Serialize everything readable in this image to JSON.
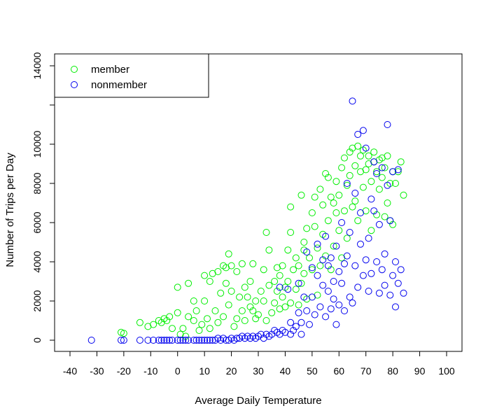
{
  "chart_data": {
    "type": "scatter",
    "title": "",
    "xlabel": "Average Daily Temperature",
    "ylabel": "Number of Trips per Day",
    "xlim": [
      -40,
      100
    ],
    "ylim": [
      0,
      14000
    ],
    "x_ticks": [
      -40,
      -30,
      -20,
      -10,
      0,
      10,
      20,
      30,
      40,
      50,
      60,
      70,
      80,
      90,
      100
    ],
    "y_ticks": [
      0,
      2000,
      4000,
      6000,
      8000,
      10000,
      14000
    ],
    "y_minor_ticks": [
      12000
    ],
    "grid": false,
    "legend_position": "top-left",
    "marker": "open-circle",
    "series": [
      {
        "name": "member",
        "color": "#00ee00",
        "points": [
          [
            -21,
            400
          ],
          [
            -20,
            350
          ],
          [
            -14,
            900
          ],
          [
            -11,
            700
          ],
          [
            -9,
            800
          ],
          [
            -7,
            1000
          ],
          [
            -6,
            900
          ],
          [
            -5,
            1100
          ],
          [
            -4,
            1000
          ],
          [
            -3,
            1200
          ],
          [
            -2,
            600
          ],
          [
            0,
            1400
          ],
          [
            0,
            2700
          ],
          [
            1,
            300
          ],
          [
            2,
            600
          ],
          [
            3,
            200
          ],
          [
            4,
            1200
          ],
          [
            4,
            2900
          ],
          [
            6,
            2000
          ],
          [
            6,
            1000
          ],
          [
            7,
            1500
          ],
          [
            8,
            500
          ],
          [
            9,
            800
          ],
          [
            10,
            3300
          ],
          [
            10,
            2000
          ],
          [
            11,
            1100
          ],
          [
            12,
            3000
          ],
          [
            12,
            600
          ],
          [
            13,
            3400
          ],
          [
            14,
            1500
          ],
          [
            15,
            3500
          ],
          [
            15,
            900
          ],
          [
            16,
            2400
          ],
          [
            17,
            3800
          ],
          [
            17,
            1200
          ],
          [
            18,
            2900
          ],
          [
            18,
            3700
          ],
          [
            19,
            4400
          ],
          [
            19,
            1800
          ],
          [
            20,
            2500
          ],
          [
            20,
            3800
          ],
          [
            21,
            700
          ],
          [
            22,
            1100
          ],
          [
            22,
            3500
          ],
          [
            23,
            2200
          ],
          [
            24,
            3900
          ],
          [
            24,
            1500
          ],
          [
            25,
            2700
          ],
          [
            25,
            1000
          ],
          [
            26,
            2200
          ],
          [
            27,
            3000
          ],
          [
            27,
            1700
          ],
          [
            28,
            1500
          ],
          [
            28,
            3900
          ],
          [
            29,
            1100
          ],
          [
            29,
            2000
          ],
          [
            30,
            1300
          ],
          [
            31,
            2500
          ],
          [
            32,
            3600
          ],
          [
            32,
            2000
          ],
          [
            33,
            5500
          ],
          [
            33,
            1000
          ],
          [
            34,
            4600
          ],
          [
            34,
            2800
          ],
          [
            35,
            1400
          ],
          [
            36,
            3000
          ],
          [
            36,
            1900
          ],
          [
            37,
            3700
          ],
          [
            37,
            2500
          ],
          [
            38,
            1600
          ],
          [
            38,
            3300
          ],
          [
            39,
            3800
          ],
          [
            39,
            2200
          ],
          [
            40,
            2700
          ],
          [
            40,
            1700
          ],
          [
            41,
            3000
          ],
          [
            41,
            4600
          ],
          [
            42,
            6800
          ],
          [
            42,
            1900
          ],
          [
            42,
            5500
          ],
          [
            43,
            3600
          ],
          [
            44,
            2600
          ],
          [
            44,
            4200
          ],
          [
            45,
            1800
          ],
          [
            45,
            3800
          ],
          [
            46,
            2900
          ],
          [
            46,
            7400
          ],
          [
            47,
            5000
          ],
          [
            47,
            4600
          ],
          [
            47,
            3400
          ],
          [
            48,
            5700
          ],
          [
            48,
            2100
          ],
          [
            49,
            4200
          ],
          [
            50,
            3600
          ],
          [
            50,
            6500
          ],
          [
            51,
            7300
          ],
          [
            51,
            5800
          ],
          [
            52,
            2300
          ],
          [
            52,
            4700
          ],
          [
            53,
            3800
          ],
          [
            53,
            7700
          ],
          [
            54,
            6900
          ],
          [
            54,
            5400
          ],
          [
            55,
            8500
          ],
          [
            55,
            4300
          ],
          [
            56,
            6100
          ],
          [
            56,
            8300
          ],
          [
            57,
            7300
          ],
          [
            57,
            3600
          ],
          [
            58,
            7000
          ],
          [
            58,
            4800
          ],
          [
            59,
            8100
          ],
          [
            59,
            6500
          ],
          [
            60,
            5600
          ],
          [
            60,
            7400
          ],
          [
            61,
            8800
          ],
          [
            61,
            4200
          ],
          [
            62,
            6600
          ],
          [
            62,
            9300
          ],
          [
            63,
            7900
          ],
          [
            63,
            5200
          ],
          [
            64,
            9600
          ],
          [
            64,
            8400
          ],
          [
            65,
            6800
          ],
          [
            65,
            9800
          ],
          [
            66,
            8900
          ],
          [
            66,
            7100
          ],
          [
            67,
            9900
          ],
          [
            67,
            6100
          ],
          [
            68,
            8600
          ],
          [
            68,
            9400
          ],
          [
            69,
            9700
          ],
          [
            69,
            7800
          ],
          [
            70,
            8700
          ],
          [
            70,
            6600
          ],
          [
            71,
            9000
          ],
          [
            71,
            9400
          ],
          [
            72,
            8100
          ],
          [
            72,
            5600
          ],
          [
            73,
            9100
          ],
          [
            73,
            9600
          ],
          [
            74,
            8600
          ],
          [
            74,
            6400
          ],
          [
            75,
            9200
          ],
          [
            75,
            7700
          ],
          [
            76,
            8300
          ],
          [
            76,
            9300
          ],
          [
            77,
            8800
          ],
          [
            77,
            6300
          ],
          [
            78,
            9400
          ],
          [
            78,
            7000
          ],
          [
            79,
            8000
          ],
          [
            79,
            6100
          ],
          [
            80,
            8600
          ],
          [
            80,
            5900
          ],
          [
            81,
            8000
          ],
          [
            82,
            8600
          ],
          [
            83,
            9100
          ],
          [
            84,
            7400
          ]
        ]
      },
      {
        "name": "nonmember",
        "color": "#0000ee",
        "points": [
          [
            -32,
            0
          ],
          [
            -21,
            0
          ],
          [
            -20,
            0
          ],
          [
            -14,
            0
          ],
          [
            -11,
            0
          ],
          [
            -9,
            0
          ],
          [
            -7,
            0
          ],
          [
            -6,
            0
          ],
          [
            -5,
            0
          ],
          [
            -4,
            0
          ],
          [
            -3,
            0
          ],
          [
            -2,
            0
          ],
          [
            0,
            0
          ],
          [
            1,
            0
          ],
          [
            2,
            0
          ],
          [
            3,
            0
          ],
          [
            4,
            0
          ],
          [
            6,
            0
          ],
          [
            7,
            0
          ],
          [
            8,
            0
          ],
          [
            9,
            0
          ],
          [
            10,
            0
          ],
          [
            11,
            0
          ],
          [
            12,
            0
          ],
          [
            13,
            0
          ],
          [
            14,
            0
          ],
          [
            15,
            100
          ],
          [
            16,
            0
          ],
          [
            17,
            100
          ],
          [
            18,
            0
          ],
          [
            19,
            0
          ],
          [
            20,
            100
          ],
          [
            21,
            0
          ],
          [
            22,
            100
          ],
          [
            23,
            100
          ],
          [
            24,
            200
          ],
          [
            25,
            100
          ],
          [
            26,
            200
          ],
          [
            27,
            100
          ],
          [
            28,
            200
          ],
          [
            29,
            100
          ],
          [
            30,
            200
          ],
          [
            31,
            300
          ],
          [
            32,
            100
          ],
          [
            33,
            300
          ],
          [
            34,
            200
          ],
          [
            35,
            300
          ],
          [
            36,
            500
          ],
          [
            37,
            400
          ],
          [
            38,
            300
          ],
          [
            38,
            2700
          ],
          [
            39,
            500
          ],
          [
            40,
            400
          ],
          [
            41,
            2600
          ],
          [
            42,
            300
          ],
          [
            42,
            900
          ],
          [
            43,
            500
          ],
          [
            44,
            700
          ],
          [
            45,
            1400
          ],
          [
            45,
            2900
          ],
          [
            46,
            300
          ],
          [
            46,
            900
          ],
          [
            47,
            2200
          ],
          [
            48,
            1500
          ],
          [
            48,
            4500
          ],
          [
            49,
            800
          ],
          [
            50,
            3700
          ],
          [
            50,
            2200
          ],
          [
            51,
            1300
          ],
          [
            52,
            3300
          ],
          [
            52,
            4900
          ],
          [
            53,
            1700
          ],
          [
            54,
            2800
          ],
          [
            54,
            4100
          ],
          [
            55,
            1200
          ],
          [
            55,
            5300
          ],
          [
            56,
            2500
          ],
          [
            56,
            3800
          ],
          [
            57,
            1600
          ],
          [
            57,
            4200
          ],
          [
            58,
            3000
          ],
          [
            58,
            2100
          ],
          [
            59,
            800
          ],
          [
            59,
            4800
          ],
          [
            60,
            1800
          ],
          [
            60,
            3500
          ],
          [
            61,
            2900
          ],
          [
            61,
            6000
          ],
          [
            62,
            1500
          ],
          [
            62,
            3900
          ],
          [
            63,
            4300
          ],
          [
            63,
            8000
          ],
          [
            64,
            2200
          ],
          [
            64,
            5500
          ],
          [
            65,
            1900
          ],
          [
            65,
            12200
          ],
          [
            66,
            3800
          ],
          [
            66,
            7500
          ],
          [
            67,
            2700
          ],
          [
            67,
            10500
          ],
          [
            68,
            4900
          ],
          [
            68,
            6500
          ],
          [
            69,
            3300
          ],
          [
            69,
            10700
          ],
          [
            70,
            4100
          ],
          [
            70,
            9800
          ],
          [
            71,
            2500
          ],
          [
            71,
            5200
          ],
          [
            72,
            7200
          ],
          [
            72,
            3400
          ],
          [
            73,
            6600
          ],
          [
            73,
            9100
          ],
          [
            74,
            4000
          ],
          [
            74,
            8500
          ],
          [
            75,
            2400
          ],
          [
            75,
            5900
          ],
          [
            76,
            3600
          ],
          [
            76,
            8800
          ],
          [
            77,
            2800
          ],
          [
            77,
            4400
          ],
          [
            78,
            11000
          ],
          [
            78,
            7900
          ],
          [
            79,
            2300
          ],
          [
            79,
            6100
          ],
          [
            80,
            3300
          ],
          [
            80,
            8600
          ],
          [
            81,
            1700
          ],
          [
            81,
            4000
          ],
          [
            82,
            2900
          ],
          [
            82,
            8700
          ],
          [
            83,
            3600
          ],
          [
            84,
            2400
          ]
        ]
      }
    ]
  }
}
